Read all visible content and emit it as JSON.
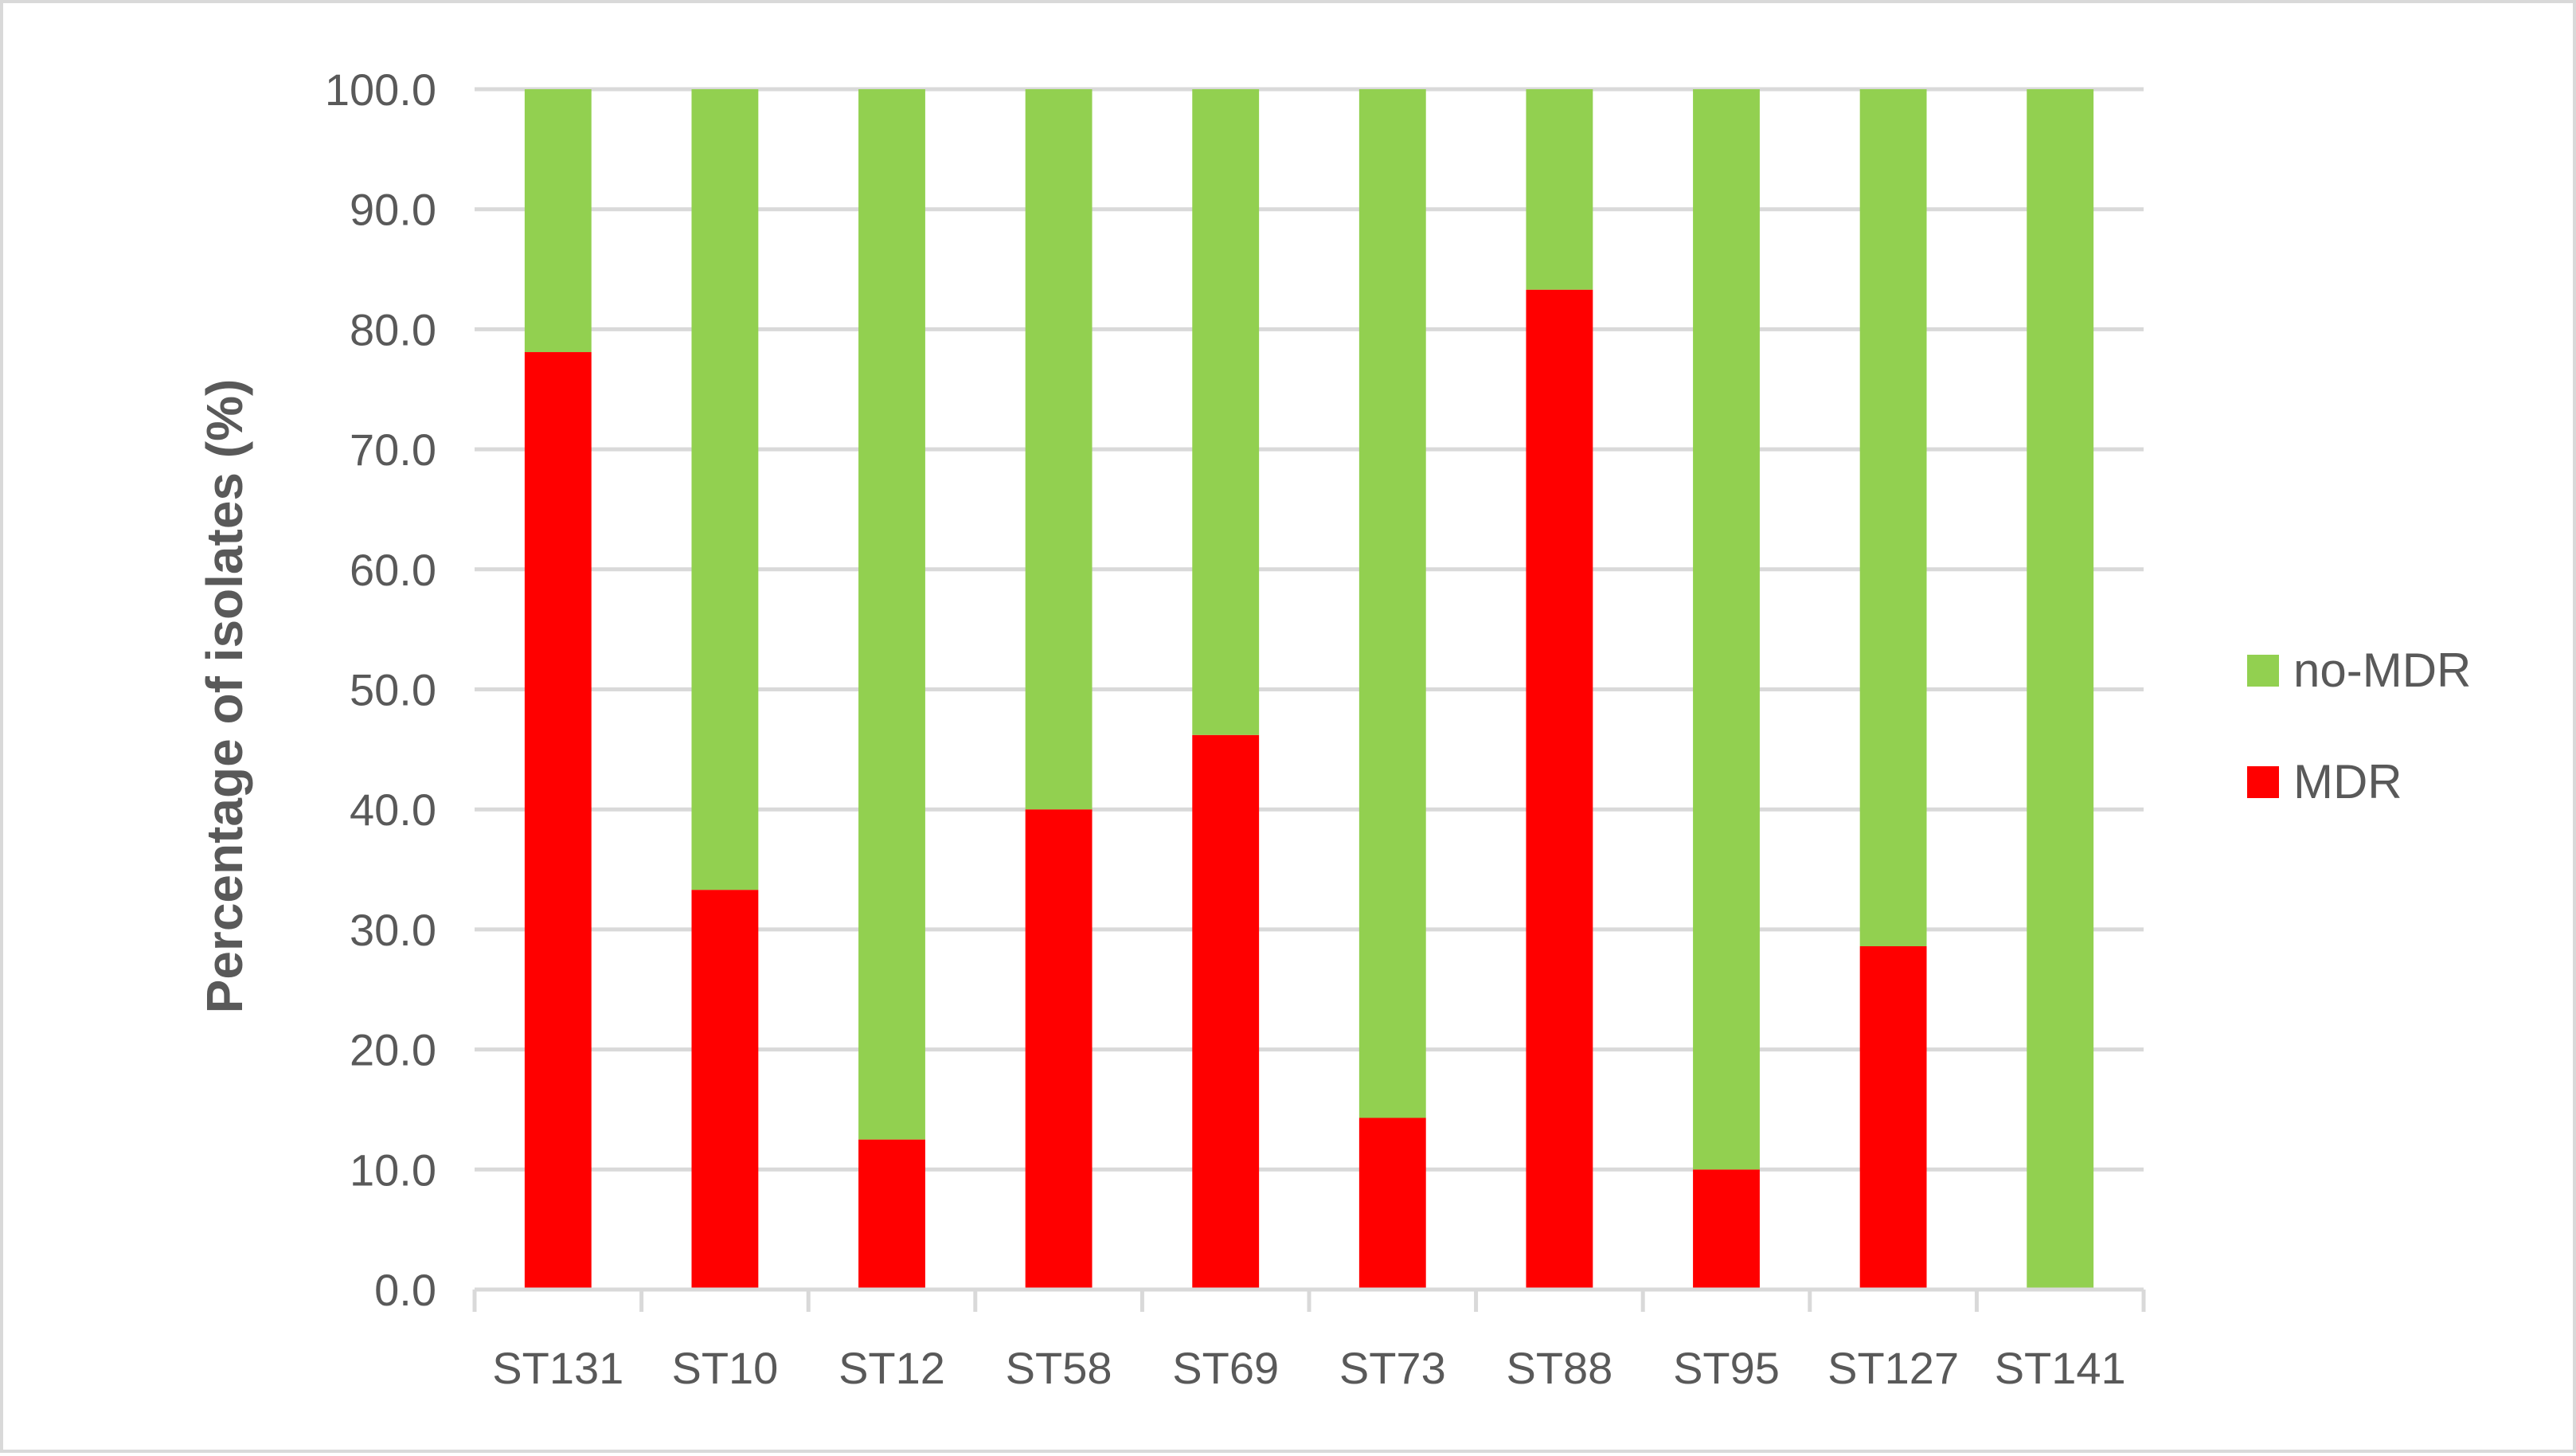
{
  "chart_data": {
    "type": "bar",
    "stacked": true,
    "title": "",
    "xlabel": "",
    "ylabel": "Percentage of isolates (%)",
    "ylim": [
      0,
      100
    ],
    "ytick_step": 10,
    "ytick_labels": [
      "0.0",
      "10.0",
      "20.0",
      "30.0",
      "40.0",
      "50.0",
      "60.0",
      "70.0",
      "80.0",
      "90.0",
      "100.0"
    ],
    "grid": true,
    "legend": "right",
    "categories": [
      "ST131",
      "ST10",
      "ST12",
      "ST58",
      "ST69",
      "ST73",
      "ST88",
      "ST95",
      "ST127",
      "ST141"
    ],
    "series": [
      {
        "name": "MDR",
        "color": "#ff0000",
        "values": [
          78.1,
          33.3,
          12.5,
          40.0,
          46.2,
          14.3,
          83.3,
          10.0,
          28.6,
          0.0
        ]
      },
      {
        "name": "no-MDR",
        "color": "#92d050",
        "values": [
          21.9,
          66.7,
          87.5,
          60.0,
          53.8,
          85.7,
          16.7,
          90.0,
          71.4,
          100.0
        ]
      }
    ],
    "legend_order": [
      "no-MDR",
      "MDR"
    ]
  }
}
